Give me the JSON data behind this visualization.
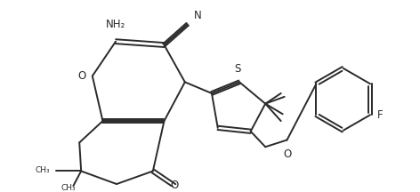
{
  "bg_color": "#ffffff",
  "line_color": "#2a2a2a",
  "line_width": 1.4,
  "figsize": [
    4.72,
    2.16
  ],
  "dpi": 100,
  "xlim": [
    0,
    4.72
  ],
  "ylim": [
    0,
    2.16
  ]
}
